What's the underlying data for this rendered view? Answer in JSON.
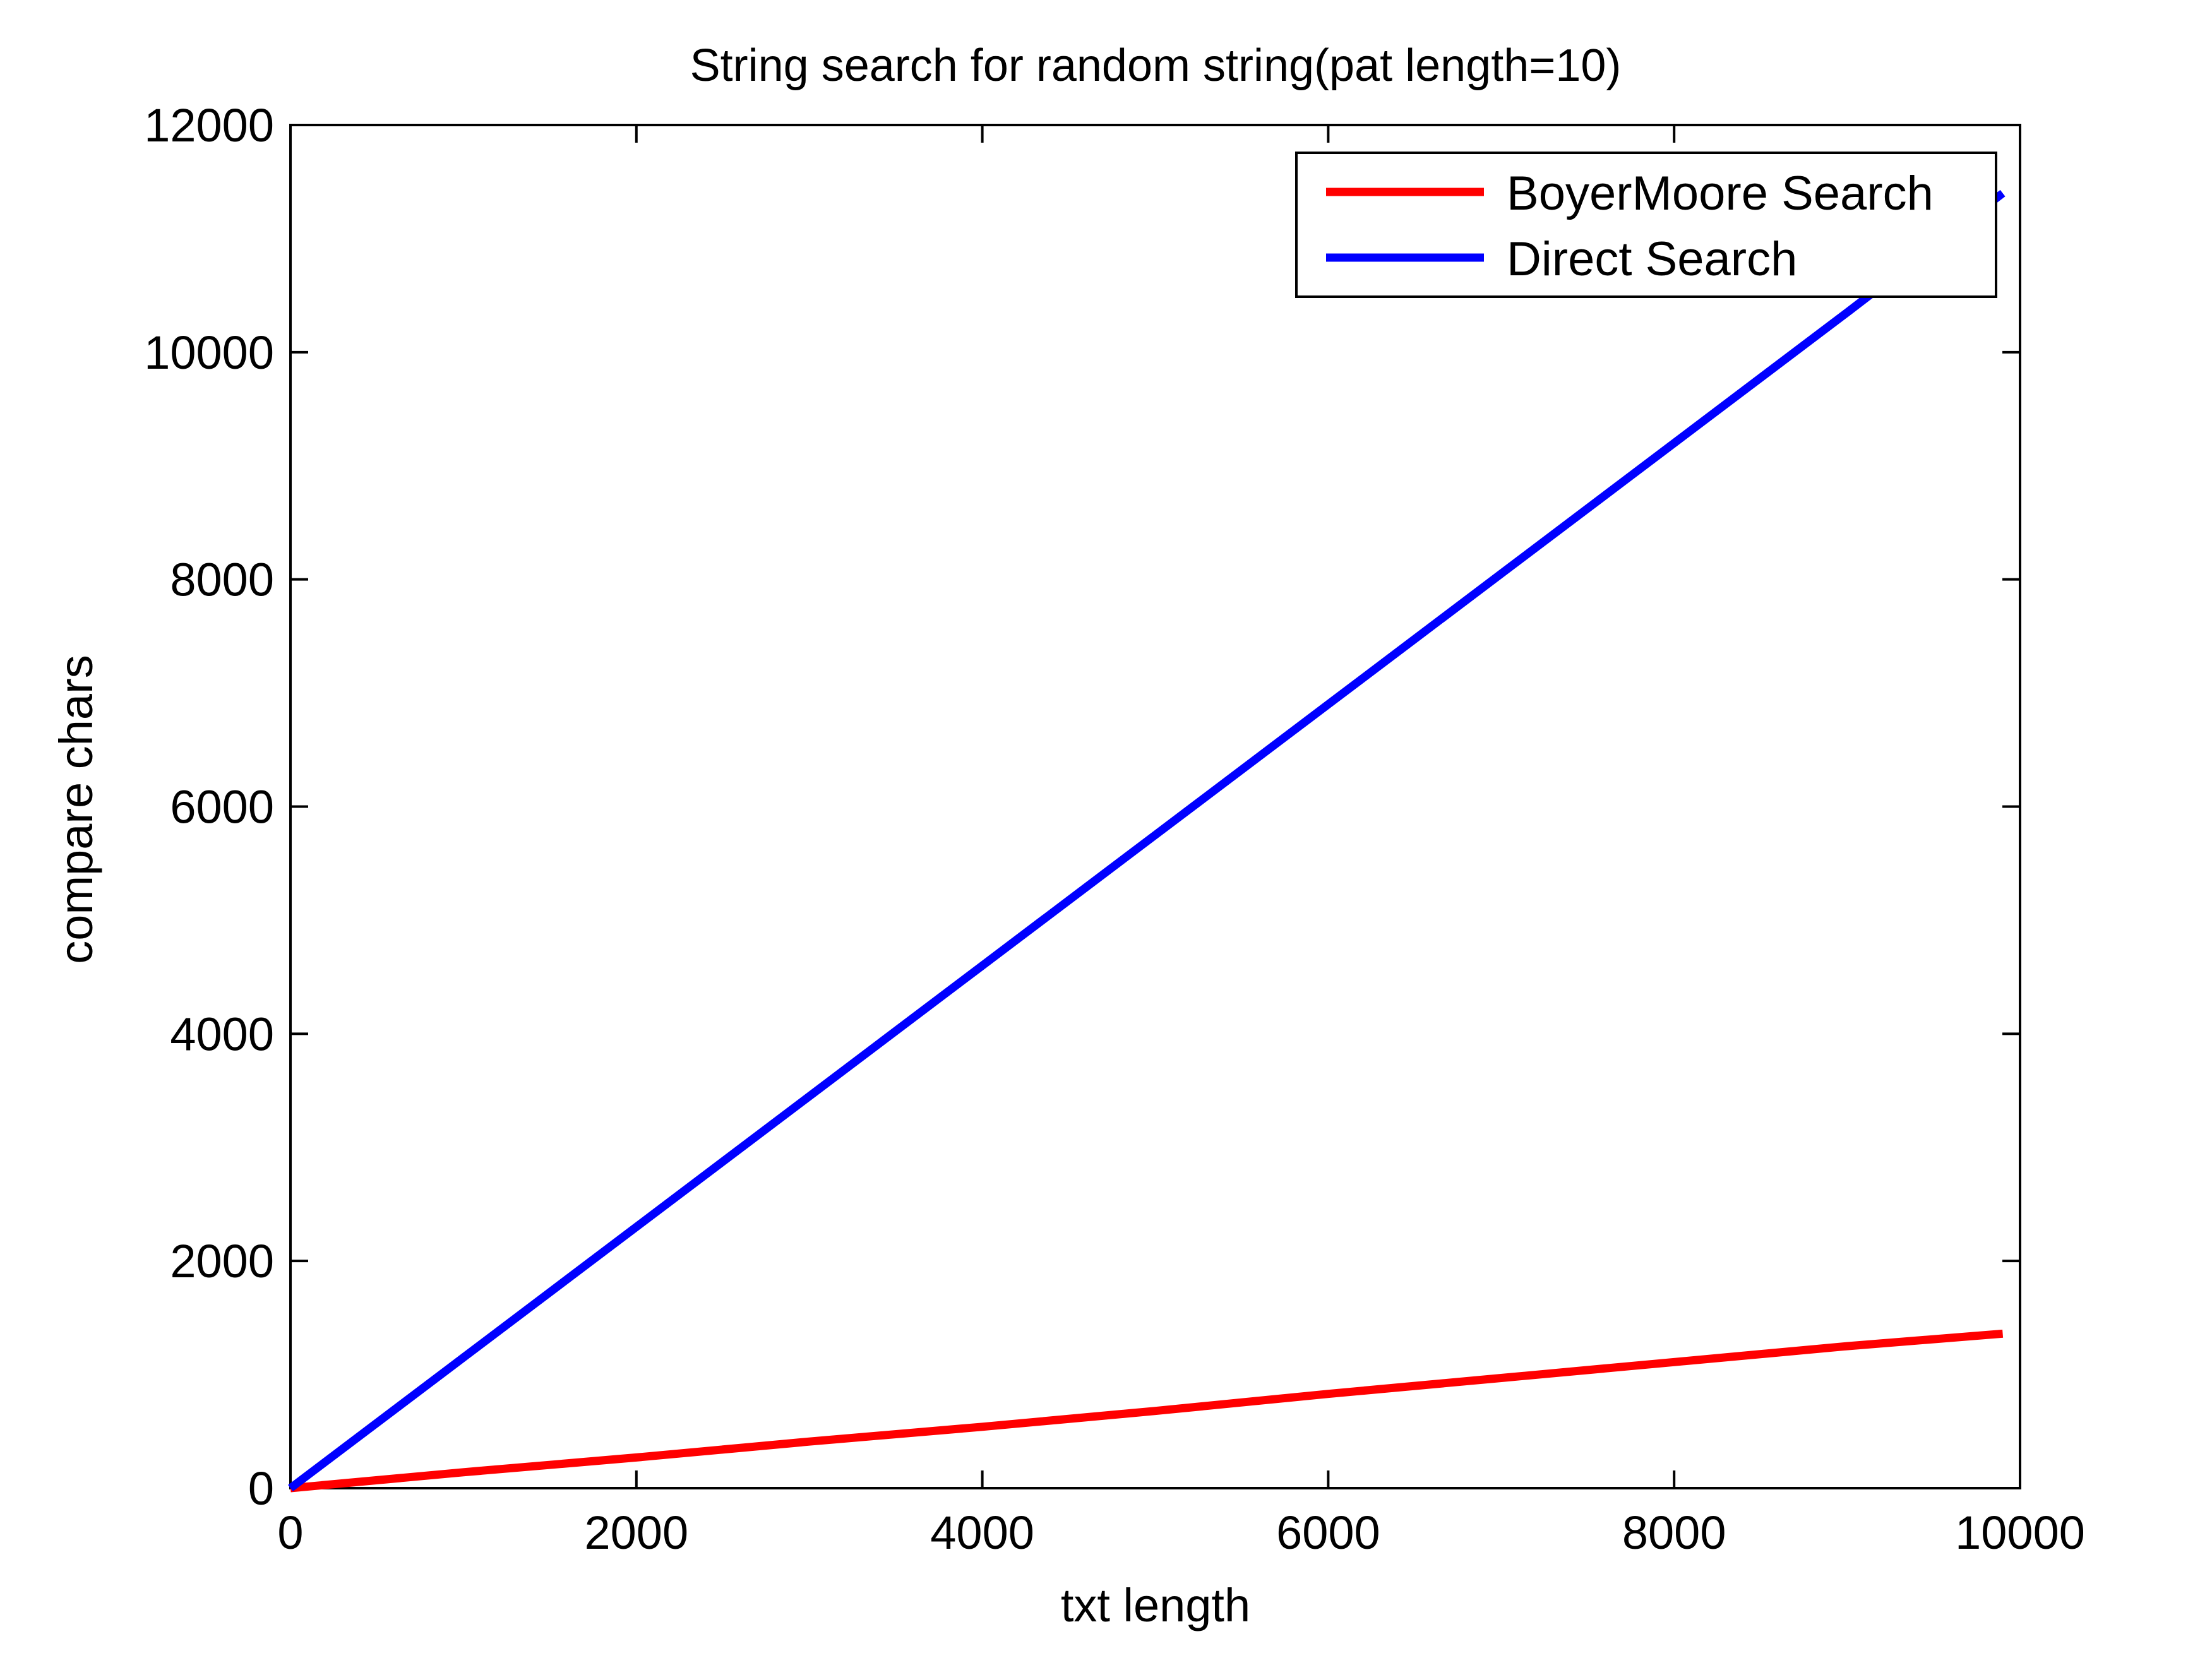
{
  "chart_data": {
    "type": "line",
    "title": "String search for random string(pat length=10)",
    "xlabel": "txt length",
    "ylabel": "compare chars",
    "xlim": [
      0,
      10000
    ],
    "ylim": [
      0,
      12000
    ],
    "xticks": [
      0,
      2000,
      4000,
      6000,
      8000,
      10000
    ],
    "yticks": [
      0,
      2000,
      4000,
      6000,
      8000,
      10000,
      12000
    ],
    "xtick_labels": [
      "0",
      "2000",
      "4000",
      "6000",
      "8000",
      "10000"
    ],
    "ytick_labels": [
      "0",
      "2000",
      "4000",
      "6000",
      "8000",
      "10000",
      "12000"
    ],
    "grid": false,
    "legend_position": "top-right",
    "series": [
      {
        "name": "BoyerMoore Search",
        "color": "#ff0000",
        "x": [
          0,
          1000,
          2000,
          3000,
          4000,
          5000,
          6000,
          7000,
          8000,
          9000,
          9900
        ],
        "y": [
          0,
          140,
          270,
          410,
          540,
          680,
          830,
          970,
          1110,
          1250,
          1360
        ]
      },
      {
        "name": "Direct Search",
        "color": "#0000ff",
        "x": [
          0,
          1000,
          2000,
          3000,
          4000,
          5000,
          6000,
          7000,
          8000,
          9000,
          9900
        ],
        "y": [
          0,
          1150,
          2300,
          3450,
          4600,
          5750,
          6900,
          8050,
          9200,
          10350,
          11400
        ]
      }
    ]
  }
}
